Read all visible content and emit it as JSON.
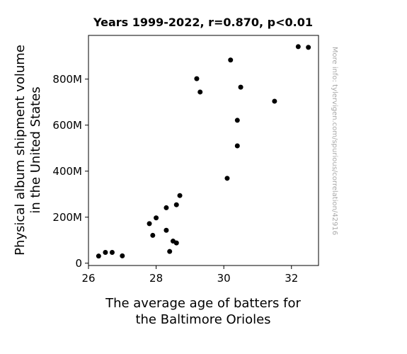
{
  "chart_data": {
    "type": "scatter",
    "title": "Years 1999-2022, r=0.870, p<0.01",
    "xlabel_lines": [
      "The average age of batters for",
      "the Baltimore Orioles"
    ],
    "ylabel_lines": [
      "Physical album shipment volume",
      "in the United States"
    ],
    "watermark": "More info: tylervigen.com/spurious/correlation/42916",
    "xlim": [
      26,
      32.8
    ],
    "ylim": [
      -10,
      990
    ],
    "xticks": [
      26,
      28,
      30,
      32
    ],
    "xtick_labels": [
      "26",
      "28",
      "30",
      "32"
    ],
    "yticks": [
      0,
      200,
      400,
      600,
      800
    ],
    "ytick_labels": [
      "0",
      "200M",
      "400M",
      "600M",
      "800M"
    ],
    "y_unit": "millions",
    "grid": false,
    "legend": "none",
    "marker_color": "#000000",
    "points": [
      {
        "x": 26.3,
        "y": 31
      },
      {
        "x": 26.5,
        "y": 47
      },
      {
        "x": 26.7,
        "y": 47
      },
      {
        "x": 27.0,
        "y": 32
      },
      {
        "x": 27.8,
        "y": 172
      },
      {
        "x": 27.9,
        "y": 121
      },
      {
        "x": 28.0,
        "y": 197
      },
      {
        "x": 28.3,
        "y": 241
      },
      {
        "x": 28.3,
        "y": 143
      },
      {
        "x": 28.4,
        "y": 51
      },
      {
        "x": 28.5,
        "y": 96
      },
      {
        "x": 28.6,
        "y": 254
      },
      {
        "x": 28.6,
        "y": 88
      },
      {
        "x": 28.7,
        "y": 294
      },
      {
        "x": 29.2,
        "y": 802
      },
      {
        "x": 29.3,
        "y": 744
      },
      {
        "x": 30.1,
        "y": 369
      },
      {
        "x": 30.2,
        "y": 883
      },
      {
        "x": 30.4,
        "y": 621
      },
      {
        "x": 30.4,
        "y": 510
      },
      {
        "x": 30.5,
        "y": 765
      },
      {
        "x": 31.5,
        "y": 704
      },
      {
        "x": 32.2,
        "y": 941
      },
      {
        "x": 32.5,
        "y": 938
      }
    ]
  }
}
